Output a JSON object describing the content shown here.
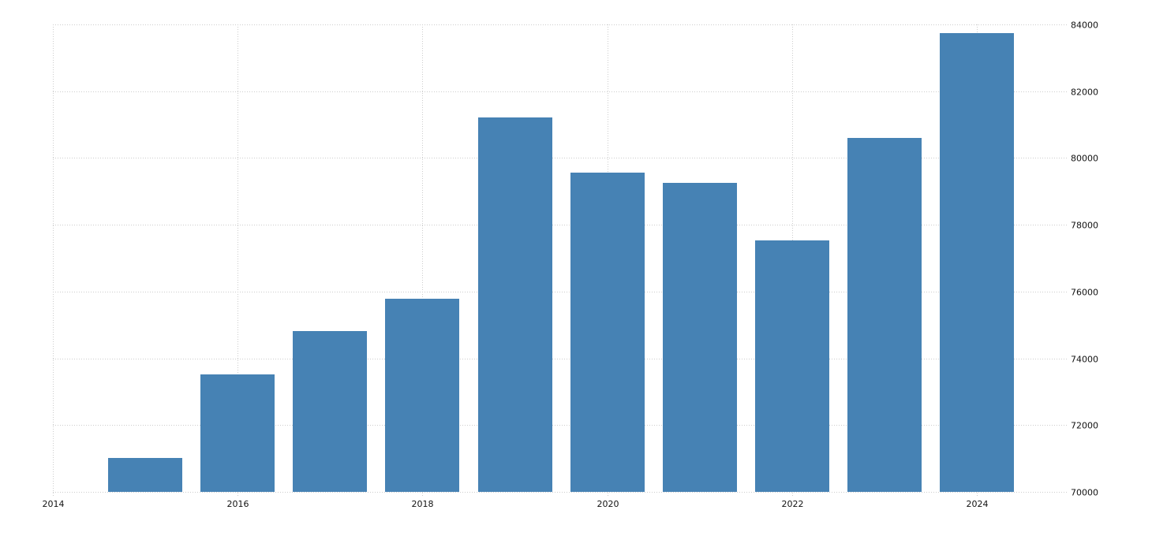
{
  "chart_data": {
    "type": "bar",
    "title": "",
    "xlabel": "",
    "ylabel": "",
    "categories": [
      "2015",
      "2016",
      "2017",
      "2018",
      "2019",
      "2020",
      "2021",
      "2022",
      "2023",
      "2024"
    ],
    "values": [
      71015,
      73520,
      74815,
      75785,
      81215,
      79560,
      79255,
      77530,
      80600,
      83740
    ],
    "ylim": [
      70000,
      84000
    ],
    "xlim": [
      2014,
      2025.2
    ],
    "y_ticks": [
      70000,
      72000,
      74000,
      76000,
      78000,
      80000,
      82000,
      84000
    ],
    "x_ticks": [
      "2014",
      "2016",
      "2018",
      "2020",
      "2022",
      "2024"
    ],
    "y_axis_position": "right",
    "grid": true,
    "legend": null,
    "bar_color": "#4682b4",
    "grid_color": "#cccccc"
  }
}
